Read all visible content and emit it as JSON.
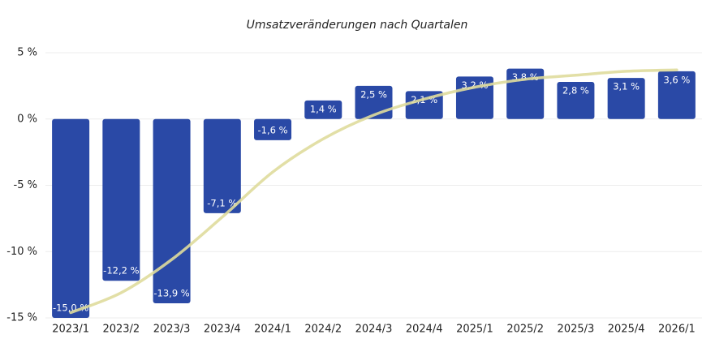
{
  "chart_data": {
    "type": "bar",
    "title": "Umsatzveränderungen nach Quartalen",
    "categories": [
      "2023/1",
      "2023/2",
      "2023/3",
      "2023/4",
      "2024/1",
      "2024/2",
      "2024/3",
      "2024/4",
      "2025/1",
      "2025/2",
      "2025/3",
      "2025/4",
      "2026/1"
    ],
    "values": [
      -15.0,
      -12.2,
      -13.9,
      -7.1,
      -1.6,
      1.4,
      2.5,
      2.1,
      3.2,
      3.8,
      2.8,
      3.1,
      3.6
    ],
    "value_labels": [
      "-15,0 %",
      "-12,2 %",
      "-13,9 %",
      "-7,1 %",
      "-1,6 %",
      "1,4 %",
      "2,5 %",
      "2,1 %",
      "3,2 %",
      "3,8 %",
      "2,8 %",
      "3,1 %",
      "3,6 %"
    ],
    "color": "#2a49a6",
    "trend": [
      -14.6,
      -13.1,
      -10.6,
      -7.4,
      -4.0,
      -1.5,
      0.3,
      1.5,
      2.4,
      3.0,
      3.3,
      3.6,
      3.7
    ],
    "trend_color": "#dfdc9c",
    "ylim": [
      -15,
      5
    ],
    "yticks": [
      {
        "value": -15,
        "label": "-15 %"
      },
      {
        "value": -10,
        "label": "-10 %"
      },
      {
        "value": -5,
        "label": "-5 %"
      },
      {
        "value": 0,
        "label": "0 %"
      },
      {
        "value": 5,
        "label": "5 %"
      }
    ],
    "grid": true
  }
}
